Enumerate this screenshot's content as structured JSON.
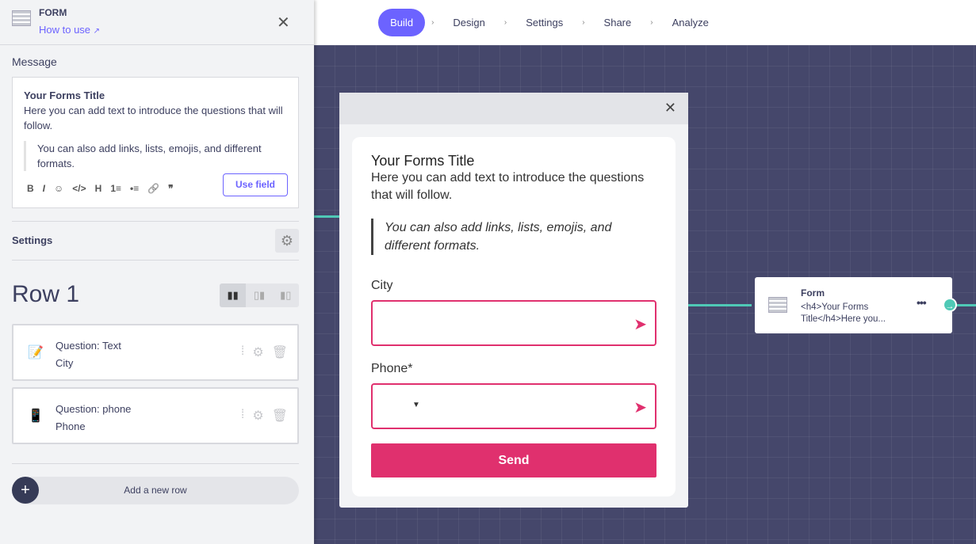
{
  "topnav": {
    "steps": [
      "Build",
      "Design",
      "Settings",
      "Share",
      "Analyze"
    ],
    "active": "Build",
    "accent": "#6c63ff"
  },
  "panel": {
    "title": "FORM",
    "how_to_use": "How to use",
    "message_label": "Message",
    "message": {
      "title": "Your Forms Title",
      "body": "Here you can add text to introduce the questions that will follow.",
      "quote": "You can also add links, lists, emojis, and different formats."
    },
    "toolbar": [
      "B",
      "I",
      "☺",
      "</>",
      "H",
      "1≡",
      "•≡",
      "🔗",
      "❞"
    ],
    "use_field": "Use field",
    "settings_label": "Settings",
    "row_title": "Row 1",
    "questions": [
      {
        "type": "Question: Text",
        "name": "City",
        "icon": "memo-icon"
      },
      {
        "type": "Question: phone",
        "name": "Phone",
        "icon": "mobile-phone-icon"
      }
    ],
    "add_row": "Add a new row"
  },
  "preview": {
    "title": "Your Forms Title",
    "body": "Here you can add text to introduce the questions that will follow.",
    "quote": "You can also add links, lists, emojis, and different formats.",
    "fields": [
      "City",
      "Phone*"
    ],
    "send": "Send",
    "accent": "#e0306e"
  },
  "node": {
    "title": "Form",
    "description": "<h4>Your Forms Title</h4>Here you..."
  }
}
